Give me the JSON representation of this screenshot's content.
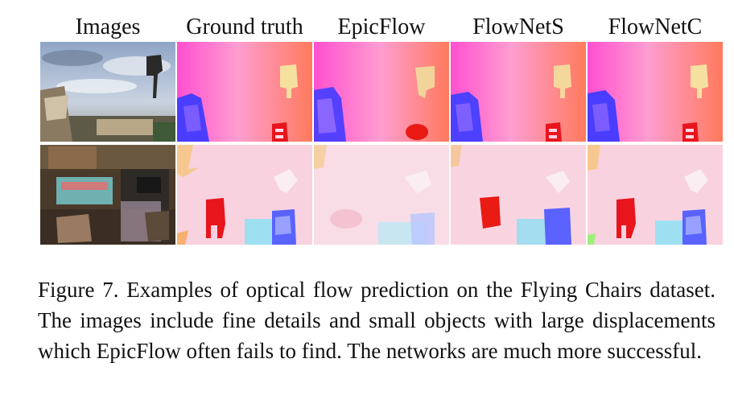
{
  "figure": {
    "column_headers": [
      "Images",
      "Ground truth",
      "EpicFlow",
      "FlowNetS",
      "FlowNetC"
    ]
  },
  "caption": {
    "text": "Figure 7. Examples of optical flow prediction on the Flying Chairs dataset. The images include fine details and small objects with large displacements which EpicFlow often fails to find. The networks are much more successful."
  },
  "colors": {
    "flow_bg_pink": "#f7c9dc",
    "flow_bg_orange": "#f98a64",
    "flow_magenta": "#ff5fd4",
    "flow_blue": "#4a3dff",
    "flow_red": "#e8151c",
    "flow_yellow": "#f4dc8c",
    "flow_cyan": "#8fdcf4"
  }
}
